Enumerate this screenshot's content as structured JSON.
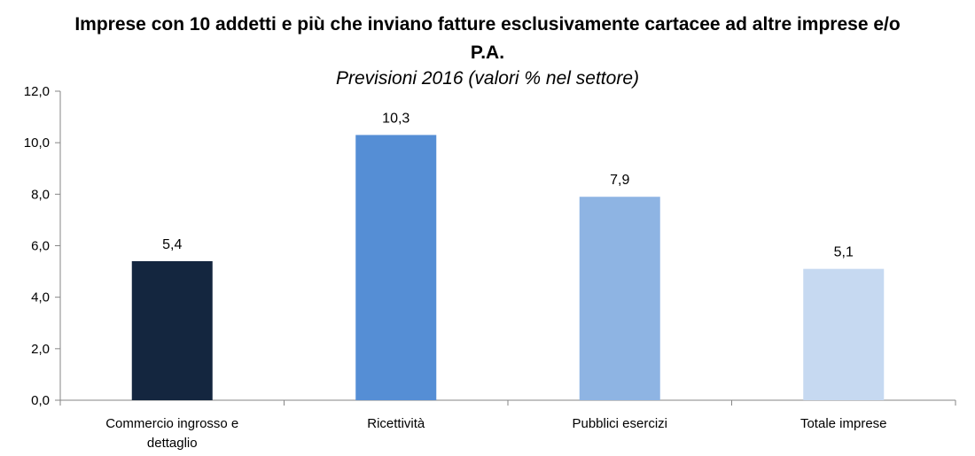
{
  "chart_data": {
    "type": "bar",
    "title_lines": [
      "Imprese con 10 addetti e più che inviano fatture esclusivamente cartacee ad altre imprese e/o",
      "P.A."
    ],
    "subtitle": "Previsioni 2016 (valori % nel settore)",
    "categories": [
      [
        "Commercio ingrosso e",
        "dettaglio"
      ],
      [
        "Ricettività"
      ],
      [
        "Pubblici esercizi"
      ],
      [
        "Totale imprese"
      ]
    ],
    "values": [
      5.4,
      10.3,
      7.9,
      5.1
    ],
    "value_labels": [
      "5,4",
      "10,3",
      "7,9",
      "5,1"
    ],
    "colors": [
      "#14263f",
      "#558ed5",
      "#8eb4e3",
      "#c6d9f1"
    ],
    "ylim": [
      0,
      12
    ],
    "yticks": [
      0,
      2,
      4,
      6,
      8,
      10,
      12
    ],
    "ytick_labels": [
      "0,0",
      "2,0",
      "4,0",
      "6,0",
      "8,0",
      "10,0",
      "12,0"
    ],
    "xlabel": "",
    "ylabel": "",
    "grid": false,
    "legend": "none"
  }
}
